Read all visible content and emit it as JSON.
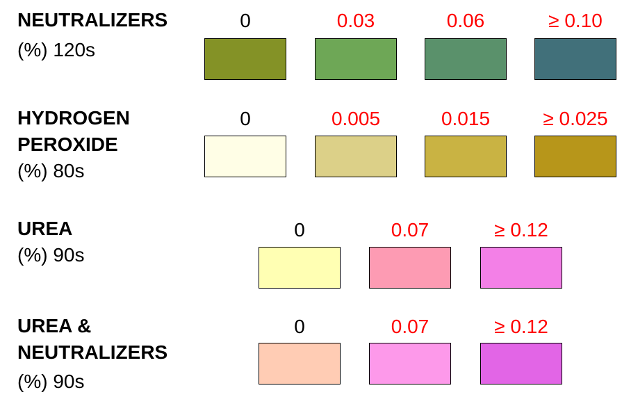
{
  "sections": [
    {
      "title_lines": [
        "NEUTRALIZERS"
      ],
      "subtitle": "(%) 120s",
      "levels": [
        {
          "value": "0",
          "color": "#849226"
        },
        {
          "value": "0.03",
          "color": "#6ea756"
        },
        {
          "value": "0.06",
          "color": "#5a916b"
        },
        {
          "value": "≥  0.10",
          "color": "#41707a"
        }
      ]
    },
    {
      "title_lines": [
        "HYDROGEN",
        "PEROXIDE"
      ],
      "subtitle": "(%) 80s",
      "levels": [
        {
          "value": "0",
          "color": "#fffee6"
        },
        {
          "value": "0.005",
          "color": "#dcd088"
        },
        {
          "value": "0.015",
          "color": "#c9b343"
        },
        {
          "value": "≥  0.025",
          "color": "#b7961a"
        }
      ]
    },
    {
      "title_lines": [
        "UREA"
      ],
      "subtitle": "(%) 90s",
      "levels": [
        {
          "value": "0",
          "color": "#ffffb3"
        },
        {
          "value": "0.07",
          "color": "#fd9bb3"
        },
        {
          "value": "≥  0.12",
          "color": "#f380e7"
        }
      ]
    },
    {
      "title_lines": [
        "UREA &",
        "NEUTRALIZERS"
      ],
      "subtitle": "(%) 90s",
      "levels": [
        {
          "value": "0",
          "color": "#ffccb4"
        },
        {
          "value": "0.07",
          "color": "#fd99ea"
        },
        {
          "value": "≥  0.12",
          "color": "#e265e6"
        }
      ]
    }
  ]
}
